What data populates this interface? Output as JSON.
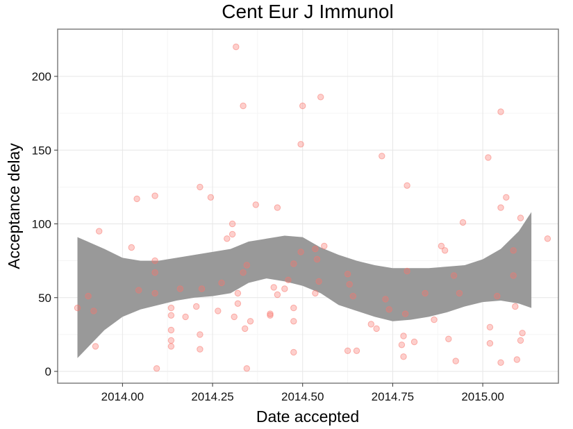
{
  "chart_data": {
    "type": "scatter",
    "title": "Cent Eur J Immunol",
    "xlabel": "Date accepted",
    "ylabel": "Acceptance delay",
    "xlim": [
      13.82,
      15.21
    ],
    "ylim": [
      -8,
      232
    ],
    "xticks": [
      14.0,
      14.25,
      14.5,
      14.75,
      15.0
    ],
    "xtick_labels": [
      "2014.00",
      "2014.25",
      "2014.50",
      "2014.75",
      "2015.00"
    ],
    "yticks": [
      0,
      50,
      100,
      150,
      200
    ],
    "ytick_labels": [
      "0",
      "50",
      "100",
      "150",
      "200"
    ],
    "grid": true,
    "legend": "none",
    "point_color": "#f8766d",
    "band_color": "#999999",
    "series": [
      {
        "points": [
          [
            13.875,
            43
          ],
          [
            13.905,
            51
          ],
          [
            13.92,
            41
          ],
          [
            13.925,
            17
          ],
          [
            13.935,
            95
          ],
          [
            14.025,
            84
          ],
          [
            14.04,
            117
          ],
          [
            14.045,
            55
          ],
          [
            14.09,
            119
          ],
          [
            14.09,
            75
          ],
          [
            14.09,
            67
          ],
          [
            14.09,
            53
          ],
          [
            14.095,
            2
          ],
          [
            14.135,
            43
          ],
          [
            14.135,
            38
          ],
          [
            14.135,
            28
          ],
          [
            14.135,
            21
          ],
          [
            14.135,
            17
          ],
          [
            14.16,
            56
          ],
          [
            14.175,
            37
          ],
          [
            14.205,
            44
          ],
          [
            14.215,
            125
          ],
          [
            14.215,
            25
          ],
          [
            14.215,
            15
          ],
          [
            14.22,
            56
          ],
          [
            14.245,
            118
          ],
          [
            14.265,
            41
          ],
          [
            14.275,
            60
          ],
          [
            14.29,
            90
          ],
          [
            14.305,
            100
          ],
          [
            14.305,
            93
          ],
          [
            14.31,
            37
          ],
          [
            14.315,
            220
          ],
          [
            14.32,
            53
          ],
          [
            14.32,
            46
          ],
          [
            14.335,
            180
          ],
          [
            14.335,
            67
          ],
          [
            14.34,
            29
          ],
          [
            14.345,
            72
          ],
          [
            14.345,
            2
          ],
          [
            14.355,
            34
          ],
          [
            14.37,
            113
          ],
          [
            14.41,
            39
          ],
          [
            14.41,
            38
          ],
          [
            14.42,
            57
          ],
          [
            14.43,
            111
          ],
          [
            14.43,
            52
          ],
          [
            14.45,
            56
          ],
          [
            14.46,
            62
          ],
          [
            14.475,
            73
          ],
          [
            14.475,
            43
          ],
          [
            14.475,
            34
          ],
          [
            14.475,
            13
          ],
          [
            14.495,
            154
          ],
          [
            14.495,
            81
          ],
          [
            14.5,
            180
          ],
          [
            14.535,
            83
          ],
          [
            14.535,
            53
          ],
          [
            14.54,
            76
          ],
          [
            14.545,
            61
          ],
          [
            14.55,
            186
          ],
          [
            14.56,
            85
          ],
          [
            14.625,
            66
          ],
          [
            14.625,
            14
          ],
          [
            14.63,
            59
          ],
          [
            14.64,
            51
          ],
          [
            14.65,
            14
          ],
          [
            14.69,
            32
          ],
          [
            14.705,
            29
          ],
          [
            14.72,
            146
          ],
          [
            14.73,
            49
          ],
          [
            14.74,
            42
          ],
          [
            14.775,
            18
          ],
          [
            14.78,
            24
          ],
          [
            14.78,
            10
          ],
          [
            14.785,
            39
          ],
          [
            14.79,
            126
          ],
          [
            14.79,
            68
          ],
          [
            14.81,
            20
          ],
          [
            14.84,
            53
          ],
          [
            14.865,
            35
          ],
          [
            14.885,
            85
          ],
          [
            14.895,
            82
          ],
          [
            14.905,
            22
          ],
          [
            14.92,
            65
          ],
          [
            14.925,
            7
          ],
          [
            14.935,
            53
          ],
          [
            14.945,
            101
          ],
          [
            15.015,
            145
          ],
          [
            15.02,
            30
          ],
          [
            15.02,
            19
          ],
          [
            15.04,
            51
          ],
          [
            15.05,
            176
          ],
          [
            15.05,
            111
          ],
          [
            15.05,
            6
          ],
          [
            15.065,
            118
          ],
          [
            15.085,
            82
          ],
          [
            15.085,
            65
          ],
          [
            15.09,
            44
          ],
          [
            15.095,
            8
          ],
          [
            15.105,
            104
          ],
          [
            15.105,
            21
          ],
          [
            15.11,
            26
          ],
          [
            15.18,
            90
          ]
        ],
        "band": {
          "x": [
            13.875,
            13.95,
            14.0,
            14.05,
            14.1,
            14.15,
            14.2,
            14.25,
            14.3,
            14.35,
            14.4,
            14.45,
            14.5,
            14.55,
            14.6,
            14.65,
            14.7,
            14.75,
            14.8,
            14.85,
            14.9,
            14.95,
            15.0,
            15.05,
            15.1,
            15.135
          ],
          "upper": [
            91,
            83,
            77,
            75,
            75,
            77,
            79,
            81,
            83,
            88,
            90,
            92,
            91,
            84,
            79,
            75,
            72,
            70,
            70,
            70,
            71,
            72,
            76,
            83,
            95,
            108
          ],
          "lower": [
            9,
            28,
            37,
            42,
            45,
            48,
            50,
            51,
            53,
            60,
            63,
            61,
            58,
            53,
            45,
            41,
            37,
            34,
            35,
            37,
            40,
            44,
            47,
            48,
            46,
            43
          ]
        }
      }
    ]
  }
}
